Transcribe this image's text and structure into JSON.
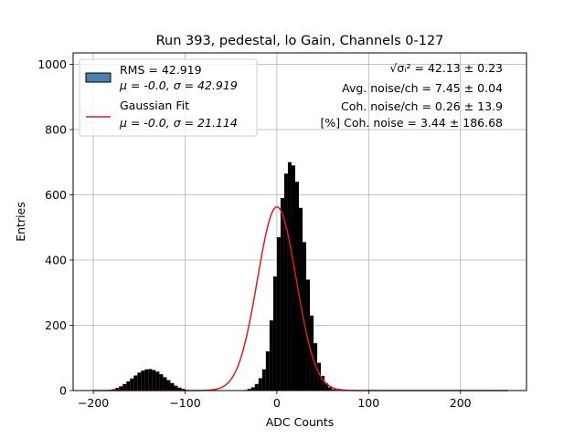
{
  "chart_data": {
    "type": "bar",
    "title": "Run 393, pedestal, lo Gain, Channels 0-127",
    "xlabel": "ADC Counts",
    "ylabel": "Entries",
    "xlim": [
      -222,
      272
    ],
    "ylim": [
      0,
      1035
    ],
    "xticks": [
      -200,
      -100,
      0,
      100,
      200
    ],
    "xtick_labels": [
      "−200",
      "−100",
      "0",
      "100",
      "200"
    ],
    "yticks": [
      0,
      200,
      400,
      600,
      800,
      1000
    ],
    "ytick_labels": [
      "0",
      "200",
      "400",
      "600",
      "800",
      "1000"
    ],
    "grid": true,
    "legend_position": "top-left",
    "histogram": {
      "name": "RMS = 42.919",
      "name_line2": "μ = -0.0, σ = 42.919",
      "color": "#000000",
      "legend_patch_color": "#4d7fb5",
      "bins": [
        [
          -182,
          2
        ],
        [
          -178,
          4
        ],
        [
          -174,
          8
        ],
        [
          -170,
          13
        ],
        [
          -166,
          20
        ],
        [
          -162,
          28
        ],
        [
          -158,
          37
        ],
        [
          -154,
          46
        ],
        [
          -150,
          55
        ],
        [
          -146,
          61
        ],
        [
          -142,
          65
        ],
        [
          -138,
          66
        ],
        [
          -134,
          63
        ],
        [
          -130,
          58
        ],
        [
          -126,
          50
        ],
        [
          -122,
          41
        ],
        [
          -118,
          32
        ],
        [
          -114,
          23
        ],
        [
          -110,
          15
        ],
        [
          -106,
          9
        ],
        [
          -102,
          5
        ],
        [
          -98,
          2
        ],
        [
          -34,
          2
        ],
        [
          -30,
          5
        ],
        [
          -26,
          10
        ],
        [
          -22,
          20
        ],
        [
          -18,
          38
        ],
        [
          -14,
          65
        ],
        [
          -10,
          120
        ],
        [
          -6,
          215
        ],
        [
          -2,
          350
        ],
        [
          2,
          470
        ],
        [
          6,
          590
        ],
        [
          10,
          665
        ],
        [
          14,
          700
        ],
        [
          18,
          690
        ],
        [
          22,
          640
        ],
        [
          26,
          560
        ],
        [
          30,
          455
        ],
        [
          34,
          340
        ],
        [
          38,
          230
        ],
        [
          42,
          145
        ],
        [
          46,
          85
        ],
        [
          50,
          45
        ],
        [
          54,
          22
        ],
        [
          58,
          10
        ],
        [
          62,
          4
        ],
        [
          66,
          2
        ]
      ]
    },
    "fit": {
      "name": "Gaussian Fit",
      "name_line2": "μ = -0.0, σ = 21.114",
      "color": "#e31a1c",
      "mu": 0.0,
      "sigma": 21.114,
      "amplitude": 563,
      "x_range": [
        -200,
        252
      ]
    },
    "annotations": [
      {
        "id": "sqrt",
        "label": "√σᵢ²",
        "value": " = 42.13 ± 0.23"
      },
      {
        "id": "avg",
        "text": "Avg. noise/ch = 7.45 ± 0.04"
      },
      {
        "id": "coh",
        "text": "Coh. noise/ch = 0.26 ± 13.9"
      },
      {
        "id": "pct",
        "text": "[%] Coh. noise = 3.44 ± 186.68"
      }
    ]
  }
}
